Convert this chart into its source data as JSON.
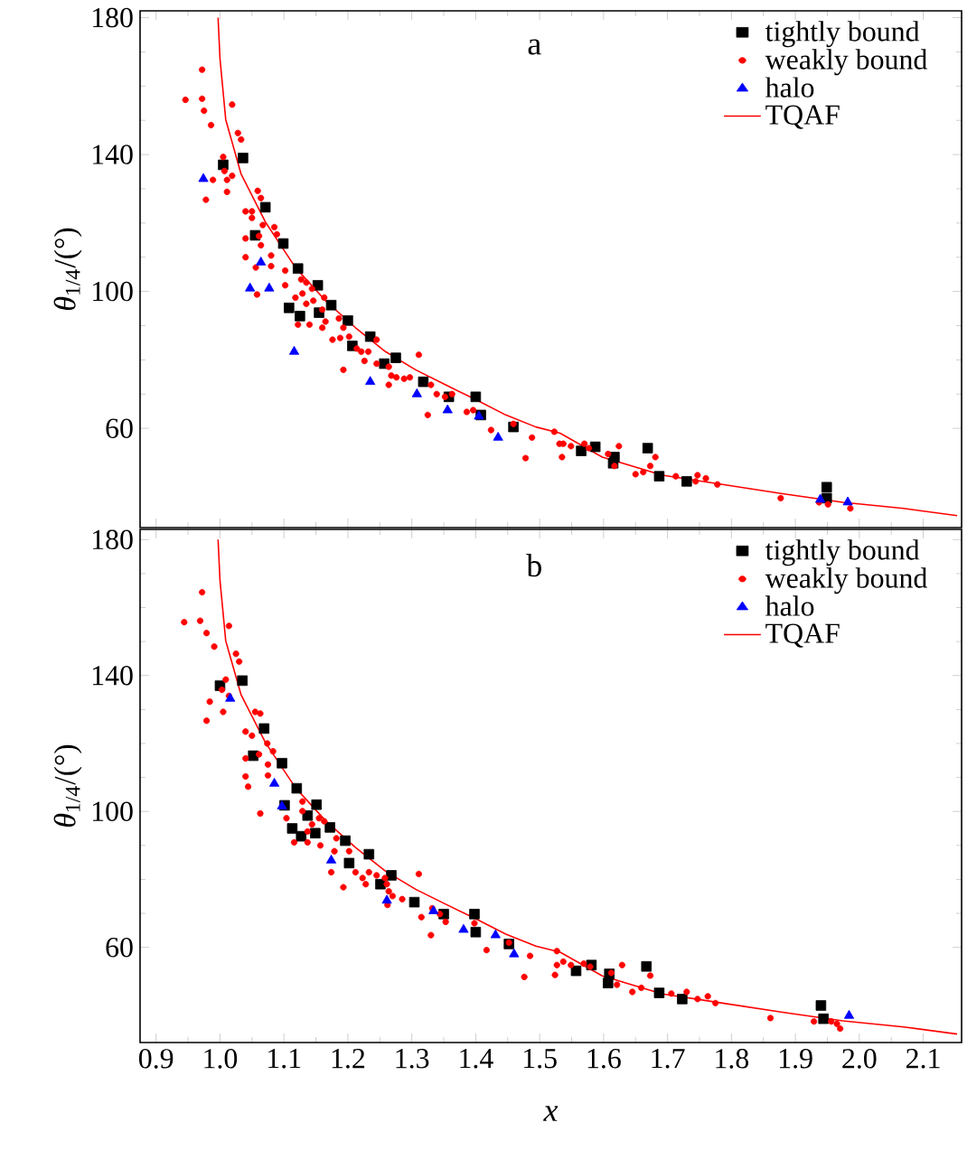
{
  "chart_data": [
    {
      "type": "scatter",
      "annotations": [
        "a"
      ],
      "ylabel": "*θ*$_{1/4}$/(°)",
      "xlim": [
        0.875,
        2.16
      ],
      "ylim": [
        31,
        182
      ],
      "xticks": [
        0.9,
        1.0,
        1.1,
        1.2,
        1.3,
        1.4,
        1.5,
        1.6,
        1.7,
        1.8,
        1.9,
        2.0,
        2.1
      ],
      "yticks": [
        60,
        100,
        140,
        180
      ],
      "tick_labels": "y",
      "legend": "top right",
      "series": [
        {
          "name": "tightly bound",
          "marker": "square",
          "color": "#000000",
          "x": [
            1.005,
            1.036,
            1.071,
            1.055,
            1.099,
            1.122,
            1.153,
            1.108,
            1.125,
            1.155,
            1.174,
            1.2,
            1.207,
            1.235,
            1.275,
            1.257,
            1.318,
            1.358,
            1.4,
            1.408,
            1.459,
            1.565,
            1.587,
            1.617,
            1.615,
            1.669,
            1.687,
            1.73,
            1.949,
            1.949
          ],
          "values": [
            137,
            139,
            124.6,
            116.4,
            114,
            106.7,
            101.8,
            95.2,
            92.8,
            93.8,
            96,
            91.5,
            84.1,
            86.8,
            80.6,
            78.9,
            73.6,
            69.2,
            69.2,
            63.9,
            60.4,
            53.4,
            54.6,
            51.6,
            49.8,
            54.2,
            46,
            44.5,
            42.8,
            39.6
          ]
        },
        {
          "name": "weakly bound",
          "marker": "circle",
          "color": "#ff0000",
          "x": [
            0.972,
            0.946,
            0.972,
            0.975,
            0.986,
            1.019,
            1.028,
            1.033,
            1.005,
            1.007,
            1.019,
            1.011,
            0.989,
            0.978,
            1.011,
            1.059,
            1.064,
            1.04,
            1.05,
            1.05,
            1.067,
            1.085,
            1.089,
            1.04,
            1.061,
            1.064,
            1.08,
            1.04,
            1.056,
            1.102,
            1.08,
            1.058,
            1.127,
            1.135,
            1.102,
            1.129,
            1.144,
            1.118,
            1.146,
            1.163,
            1.135,
            1.16,
            1.122,
            1.14,
            1.16,
            1.165,
            1.186,
            1.193,
            1.176,
            1.188,
            1.202,
            1.193,
            1.214,
            1.221,
            1.232,
            1.245,
            1.226,
            1.245,
            1.264,
            1.268,
            1.264,
            1.276,
            1.288,
            1.297,
            1.311,
            1.325,
            1.33,
            1.339,
            1.352,
            1.363,
            1.386,
            1.396,
            1.424,
            1.459,
            1.478,
            1.488,
            1.523,
            1.531,
            1.537,
            1.549,
            1.535,
            1.57,
            1.577,
            1.607,
            1.624,
            1.617,
            1.681,
            1.673,
            1.65,
            1.662,
            1.713,
            1.744,
            1.747,
            1.76,
            1.778,
            1.877,
            1.937,
            1.951,
            1.986
          ],
          "values": [
            164.8,
            156,
            156.3,
            152.8,
            148.6,
            154.6,
            146.3,
            144.4,
            139.3,
            135.2,
            133.8,
            132.6,
            132.6,
            126.8,
            129.1,
            129.4,
            127.3,
            123.4,
            123.4,
            121.5,
            119.4,
            118.8,
            116.7,
            115.5,
            116.2,
            113.5,
            110.5,
            110,
            107,
            106.1,
            107.4,
            99.1,
            103.5,
            102.6,
            101.8,
            99.4,
            100.8,
            98.2,
            97.3,
            98.2,
            96.4,
            94.7,
            90.3,
            90.3,
            89.4,
            91.2,
            92.1,
            89.4,
            85.9,
            86.4,
            86.8,
            77.1,
            83.3,
            82.4,
            82.4,
            85.9,
            79.7,
            78.9,
            78,
            75.4,
            72.7,
            74.9,
            74.5,
            74.9,
            81.5,
            63.9,
            72.7,
            70,
            69.2,
            70,
            64.8,
            65.3,
            59.5,
            61.3,
            51.3,
            57.3,
            59,
            55.5,
            55.5,
            54.8,
            51.6,
            55.5,
            54.2,
            52.5,
            54.8,
            49,
            51.6,
            49,
            46.6,
            47.2,
            46,
            44.5,
            46.3,
            45.4,
            43.6,
            39.6,
            38.4,
            37.8,
            36.6
          ]
        },
        {
          "name": "halo",
          "marker": "triangle",
          "color": "#0000ff",
          "x": [
            0.974,
            1.064,
            1.047,
            1.077,
            1.116,
            1.235,
            1.308,
            1.356,
            1.405,
            1.435,
            1.939,
            1.982
          ],
          "values": [
            132.9,
            108.5,
            100.9,
            100.9,
            82.4,
            73.6,
            70,
            65.3,
            63.5,
            57.3,
            39.2,
            38.4
          ]
        },
        {
          "name": "TQAF",
          "type": "line",
          "color": "#ff0000",
          "x": [
            0.997,
            1.0,
            1.009,
            1.033,
            1.071,
            1.118,
            1.165,
            1.212,
            1.259,
            1.306,
            1.353,
            1.4,
            1.447,
            1.494,
            1.532,
            1.598,
            1.692,
            1.786,
            1.88,
            1.974,
            2.069,
            2.153
          ],
          "values": [
            180,
            168,
            150.2,
            134.3,
            120.3,
            107,
            97.3,
            89.4,
            82.4,
            77.1,
            72.7,
            68.4,
            63.9,
            60.4,
            58.6,
            51.6,
            46.3,
            43.6,
            40.9,
            38.4,
            36.6,
            34.5
          ]
        }
      ]
    },
    {
      "type": "scatter",
      "annotations": [
        "b"
      ],
      "xlabel": "x",
      "ylabel": "*θ*$_{1/4}$/(°)",
      "xlim": [
        0.875,
        2.16
      ],
      "ylim": [
        32,
        183
      ],
      "xticks": [
        0.9,
        {
          "value": 1.0,
          "label": "1.0"
        },
        1.1,
        1.2,
        1.3,
        1.4,
        1.5,
        1.6,
        1.7,
        1.8,
        1.9,
        {
          "value": 2.0,
          "label": "2.0"
        },
        2.1
      ],
      "yticks": [
        60,
        100,
        140,
        180
      ],
      "legend": "top right",
      "series": [
        {
          "name": "tightly bound",
          "marker": "square",
          "color": "#000000",
          "x": [
            1.0,
            1.035,
            1.069,
            1.052,
            1.097,
            1.12,
            1.151,
            1.101,
            1.113,
            1.127,
            1.137,
            1.149,
            1.172,
            1.196,
            1.202,
            1.233,
            1.268,
            1.251,
            1.304,
            1.35,
            1.398,
            1.4,
            1.452,
            1.557,
            1.581,
            1.609,
            1.607,
            1.667,
            1.687,
            1.723,
            1.94,
            1.944
          ],
          "values": [
            137,
            138.5,
            124.4,
            116.4,
            114.2,
            106.8,
            102,
            101.8,
            95,
            92.7,
            98.8,
            93.6,
            95.3,
            91.4,
            84.8,
            87.4,
            81.2,
            78.6,
            73.3,
            69.8,
            69.8,
            64.5,
            61,
            53.1,
            54.8,
            52.2,
            49.5,
            54.4,
            46.6,
            44.8,
            42.9,
            39
          ]
        },
        {
          "name": "weakly bound",
          "marker": "circle",
          "color": "#ff0000",
          "x": [
            0.972,
            0.944,
            0.969,
            0.979,
            0.991,
            1.014,
            1.025,
            1.03,
            1.009,
            1.003,
            1.014,
            0.984,
            1.005,
            0.979,
            1.055,
            1.063,
            1.04,
            1.05,
            1.074,
            1.083,
            1.04,
            1.061,
            1.075,
            1.04,
            1.075,
            1.044,
            1.129,
            1.063,
            1.104,
            1.129,
            1.155,
            1.163,
            1.144,
            1.137,
            1.116,
            1.137,
            1.157,
            1.182,
            1.179,
            1.202,
            1.193,
            1.174,
            1.212,
            1.233,
            1.223,
            1.245,
            1.228,
            1.258,
            1.261,
            1.264,
            1.262,
            1.27,
            1.285,
            1.311,
            1.315,
            1.33,
            1.332,
            1.344,
            1.353,
            1.398,
            1.417,
            1.452,
            1.476,
            1.485,
            1.527,
            1.527,
            1.524,
            1.537,
            1.549,
            1.569,
            1.579,
            1.612,
            1.629,
            1.621,
            1.673,
            1.659,
            1.645,
            1.706,
            1.73,
            1.747,
            1.763,
            1.775,
            1.861,
            1.929,
            1.956,
            1.965,
            1.97
          ],
          "values": [
            164.5,
            155.7,
            156.1,
            152.5,
            148.5,
            154.6,
            146.4,
            144.1,
            138.8,
            135.8,
            134,
            132.3,
            129.3,
            126.7,
            129.3,
            128.8,
            123.5,
            122.3,
            120,
            117.7,
            115.6,
            116.8,
            113.8,
            110.3,
            110.6,
            107.3,
            102.9,
            99.4,
            98,
            100.1,
            98,
            97.1,
            96.2,
            94.1,
            90.9,
            90.9,
            90,
            92.1,
            88.3,
            88.3,
            77.7,
            82.1,
            82.1,
            82.1,
            80.4,
            81.2,
            78.6,
            80.4,
            78.6,
            76.5,
            72.5,
            75.1,
            74.2,
            81.6,
            68.9,
            63.6,
            71.5,
            69.8,
            67.5,
            67.1,
            59.2,
            61.4,
            51.3,
            57.5,
            58.9,
            54.8,
            51.9,
            55.8,
            54.8,
            55.2,
            54.3,
            52.5,
            54.8,
            49,
            51.7,
            48.1,
            46.9,
            46.4,
            46.9,
            44.8,
            45.6,
            43.6,
            39.2,
            38.2,
            38.2,
            37.5,
            36.1
          ]
        },
        {
          "name": "halo",
          "marker": "triangle",
          "color": "#0000ff",
          "x": [
            1.016,
            1.085,
            1.097,
            1.174,
            1.261,
            1.334,
            1.381,
            1.431,
            1.46,
            1.984
          ],
          "values": [
            133.2,
            108.2,
            101.5,
            85.6,
            73.8,
            70.7,
            65.2,
            63.6,
            58,
            39.9
          ]
        },
        {
          "name": "TQAF",
          "type": "line",
          "color": "#ff0000",
          "x": [
            0.997,
            1.0,
            1.009,
            1.033,
            1.071,
            1.118,
            1.165,
            1.212,
            1.259,
            1.306,
            1.353,
            1.4,
            1.447,
            1.494,
            1.532,
            1.598,
            1.692,
            1.786,
            1.88,
            1.974,
            2.069,
            2.153
          ],
          "values": [
            180,
            168,
            150.2,
            134.3,
            120.3,
            107,
            97.3,
            89.4,
            82.4,
            77.1,
            72.7,
            68.4,
            63.9,
            60.4,
            58.6,
            51.6,
            46.3,
            43.6,
            40.9,
            38.4,
            36.6,
            34.5
          ]
        }
      ]
    }
  ]
}
